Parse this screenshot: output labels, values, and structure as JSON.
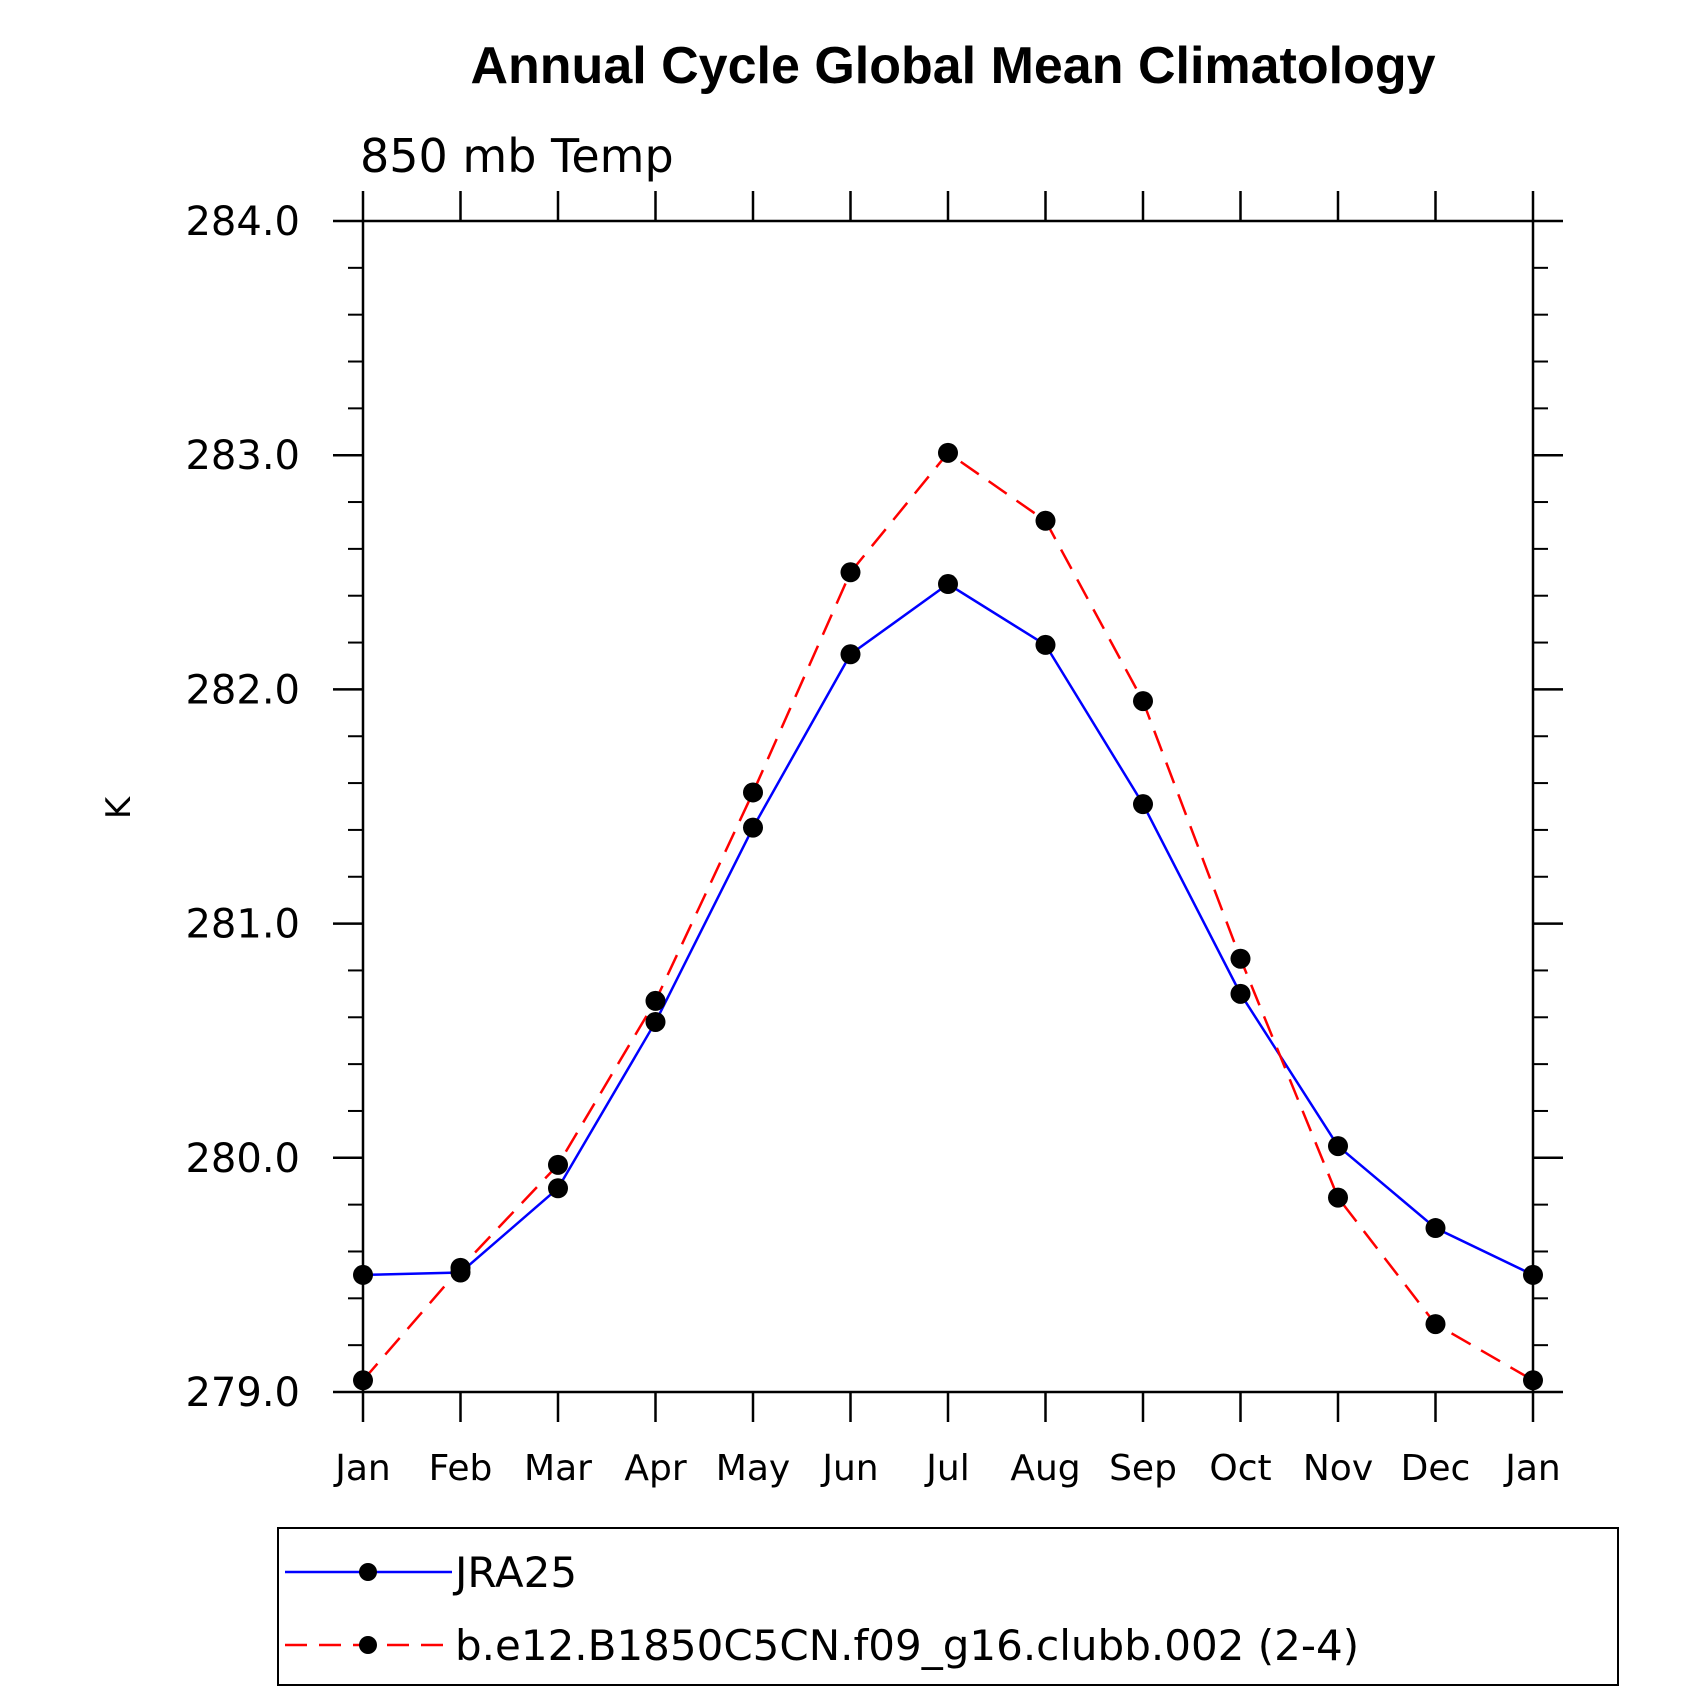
{
  "chart_data": {
    "type": "line",
    "title": "Annual Cycle Global Mean Climatology",
    "subtitle": "850 mb Temp",
    "xlabel": "",
    "ylabel": "K",
    "categories": [
      "Jan",
      "Feb",
      "Mar",
      "Apr",
      "May",
      "Jun",
      "Jul",
      "Aug",
      "Sep",
      "Oct",
      "Nov",
      "Dec",
      "Jan"
    ],
    "ylim": [
      279.0,
      284.0
    ],
    "yticks": [
      279.0,
      280.0,
      281.0,
      282.0,
      283.0,
      284.0
    ],
    "ytick_labels": [
      "279.0",
      "280.0",
      "281.0",
      "282.0",
      "283.0",
      "284.0"
    ],
    "y_minor_step": 0.2,
    "grid": false,
    "legend_position": "bottom",
    "series": [
      {
        "name": "JRA25",
        "color": "#0000ff",
        "line_style": "solid",
        "marker": "filled-circle",
        "values": [
          279.5,
          279.51,
          279.87,
          280.58,
          281.41,
          282.15,
          282.45,
          282.19,
          281.51,
          280.7,
          280.05,
          279.7,
          279.5
        ]
      },
      {
        "name": "b.e12.B1850C5CN.f09_g16.clubb.002 (2-4)",
        "color": "#ff0000",
        "line_style": "dashed",
        "marker": "filled-circle",
        "values": [
          279.05,
          279.53,
          279.97,
          280.67,
          281.56,
          282.5,
          283.01,
          282.72,
          281.95,
          280.85,
          279.83,
          279.29,
          279.05
        ]
      }
    ]
  }
}
